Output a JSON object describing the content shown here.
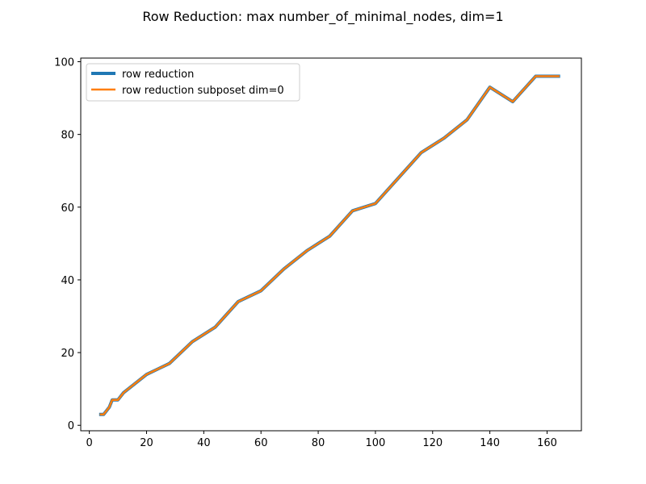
{
  "chart_data": {
    "type": "line",
    "title": "Row Reduction: max number_of_minimal_nodes, dim=1",
    "xlabel": "",
    "ylabel": "",
    "xlim": [
      -3,
      172
    ],
    "ylim": [
      -1.5,
      101
    ],
    "xticks": [
      0,
      20,
      40,
      60,
      80,
      100,
      120,
      140,
      160
    ],
    "yticks": [
      0,
      20,
      40,
      60,
      80,
      100
    ],
    "grid": false,
    "legend_position": "upper-left",
    "x": [
      4,
      5,
      6,
      7,
      8,
      9,
      10,
      12,
      16,
      20,
      24,
      28,
      32,
      36,
      40,
      44,
      48,
      52,
      56,
      60,
      64,
      68,
      72,
      76,
      80,
      84,
      88,
      92,
      96,
      100,
      108,
      116,
      124,
      132,
      140,
      148,
      156,
      164
    ],
    "series": [
      {
        "name": "row reduction",
        "color": "#1f77b4",
        "values": [
          3,
          3,
          4,
          5,
          7,
          7,
          7,
          9,
          11.5,
          14,
          15.5,
          17,
          20,
          23,
          25,
          27,
          30.5,
          34,
          35.5,
          37,
          40,
          43,
          45.5,
          48,
          50,
          52,
          55.5,
          59,
          60,
          61,
          68,
          75,
          79,
          84,
          93,
          89,
          96,
          96
        ]
      },
      {
        "name": "row reduction subposet dim=0",
        "color": "#ff7f0e",
        "values": [
          3,
          3,
          4,
          5,
          7,
          7,
          7,
          9,
          11.5,
          14,
          15.5,
          17,
          20,
          23,
          25,
          27,
          30.5,
          34,
          35.5,
          37,
          40,
          43,
          45.5,
          48,
          50,
          52,
          55.5,
          59,
          60,
          61,
          68,
          75,
          79,
          84,
          93,
          89,
          96,
          96
        ]
      }
    ]
  }
}
